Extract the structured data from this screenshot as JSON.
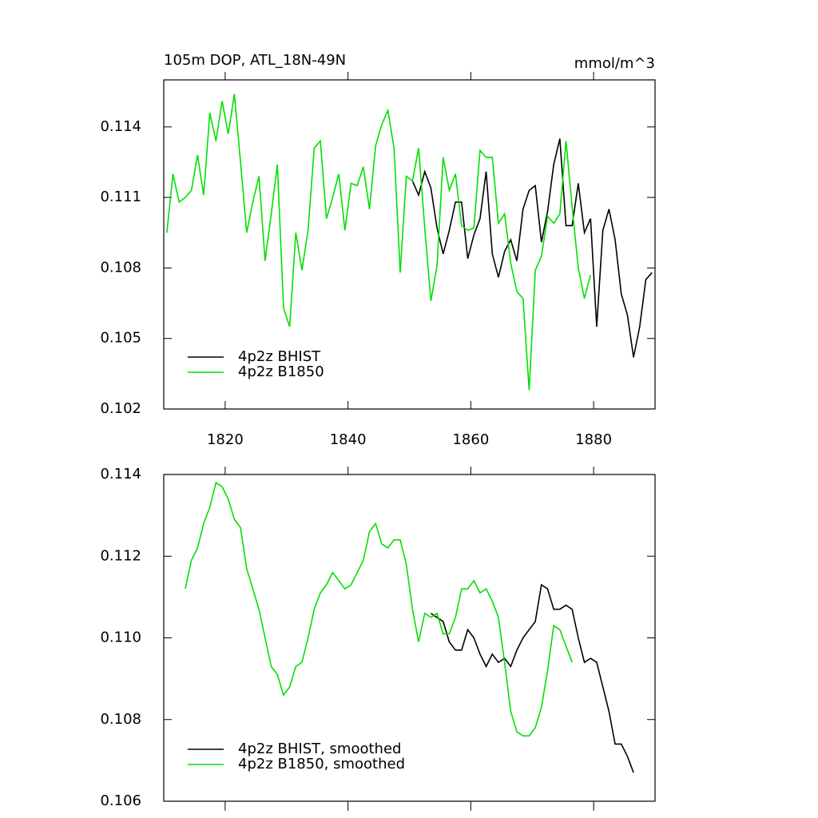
{
  "chart_data": [
    {
      "type": "line",
      "title": "105m DOP, ATL_18N-49N",
      "subtitle": "mmol/m^3",
      "xlim": [
        1810,
        1890
      ],
      "xticks": [
        1820,
        1840,
        1860,
        1880
      ],
      "xtick_labels": true,
      "ylim": [
        0.102,
        0.116
      ],
      "yticks": [
        0.102,
        0.105,
        0.108,
        0.111,
        0.114
      ],
      "legend": "lower left",
      "x": [
        1810.5,
        1811.5,
        1812.5,
        1813.5,
        1814.5,
        1815.5,
        1816.5,
        1817.5,
        1818.5,
        1819.5,
        1820.5,
        1821.5,
        1822.5,
        1823.5,
        1824.5,
        1825.5,
        1826.5,
        1827.5,
        1828.5,
        1829.5,
        1830.5,
        1831.5,
        1832.5,
        1833.5,
        1834.5,
        1835.5,
        1836.5,
        1837.5,
        1838.5,
        1839.5,
        1840.5,
        1841.5,
        1842.5,
        1843.5,
        1844.5,
        1845.5,
        1846.5,
        1847.5,
        1848.5,
        1849.5,
        1850.5,
        1851.5,
        1852.5,
        1853.5,
        1854.5,
        1855.5,
        1856.5,
        1857.5,
        1858.5,
        1859.5,
        1860.5,
        1861.5,
        1862.5,
        1863.5,
        1864.5,
        1865.5,
        1866.5,
        1867.5,
        1868.5,
        1869.5,
        1870.5,
        1871.5,
        1872.5,
        1873.5,
        1874.5,
        1875.5,
        1876.5,
        1877.5,
        1878.5,
        1879.5,
        1880.5,
        1881.5,
        1882.5,
        1883.5,
        1884.5,
        1885.5,
        1886.5,
        1887.5,
        1888.5,
        1889.5
      ],
      "series": [
        {
          "name": "4p2z BHIST",
          "color": "#000000",
          "values": [
            null,
            null,
            null,
            null,
            null,
            null,
            null,
            null,
            null,
            null,
            null,
            null,
            null,
            null,
            null,
            null,
            null,
            null,
            null,
            null,
            null,
            null,
            null,
            null,
            null,
            null,
            null,
            null,
            null,
            null,
            null,
            null,
            null,
            null,
            null,
            null,
            null,
            null,
            null,
            null,
            0.1117,
            0.1111,
            0.1121,
            0.1114,
            0.1097,
            0.1086,
            0.1096,
            0.1108,
            0.1108,
            0.1084,
            0.1094,
            0.1101,
            0.1121,
            0.1086,
            0.1076,
            0.1087,
            0.1092,
            0.1083,
            0.1105,
            0.1113,
            0.1115,
            0.1091,
            0.1104,
            0.1124,
            0.1135,
            0.1098,
            0.1098,
            0.1116,
            0.1095,
            0.1101,
            0.1055,
            0.1096,
            0.1105,
            0.1092,
            0.1069,
            0.106,
            0.1042,
            0.1055,
            0.1075,
            0.1078
          ]
        },
        {
          "name": "4p2z B1850",
          "color": "#00e000",
          "values": [
            0.1095,
            0.112,
            0.1108,
            0.111,
            0.1113,
            0.1128,
            0.1111,
            0.1146,
            0.1134,
            0.1151,
            0.1137,
            0.1154,
            0.1125,
            0.1095,
            0.1108,
            0.1119,
            0.1083,
            0.1103,
            0.1124,
            0.1063,
            0.1055,
            0.1095,
            0.1079,
            0.1096,
            0.1131,
            0.1134,
            0.1101,
            0.111,
            0.112,
            0.1096,
            0.1116,
            0.1115,
            0.1123,
            0.1105,
            0.1132,
            0.1141,
            0.1147,
            0.1131,
            0.1078,
            0.1119,
            0.1117,
            0.1131,
            0.1097,
            0.1066,
            0.1081,
            0.1127,
            0.1113,
            0.112,
            0.1098,
            0.1096,
            0.1097,
            0.113,
            0.1127,
            0.1127,
            0.1099,
            0.1103,
            0.1082,
            0.107,
            0.1067,
            0.1028,
            0.1079,
            0.1085,
            0.1102,
            0.1099,
            0.1103,
            0.1134,
            0.1106,
            0.108,
            0.1067,
            0.1077,
            null,
            null,
            null,
            null,
            null,
            null,
            null,
            null,
            null,
            null
          ]
        }
      ]
    },
    {
      "type": "line",
      "xlim": [
        1810,
        1890
      ],
      "xticks": [
        1820,
        1840,
        1860,
        1880
      ],
      "xtick_labels": false,
      "ylim": [
        0.106,
        0.114
      ],
      "yticks": [
        0.106,
        0.108,
        {
          "value": 0.11,
          "label": "0.110"
        },
        0.112,
        0.114
      ],
      "legend": "lower left",
      "x": [
        1813.5,
        1814.5,
        1815.5,
        1816.5,
        1817.5,
        1818.5,
        1819.5,
        1820.5,
        1821.5,
        1822.5,
        1823.5,
        1824.5,
        1825.5,
        1826.5,
        1827.5,
        1828.5,
        1829.5,
        1830.5,
        1831.5,
        1832.5,
        1833.5,
        1834.5,
        1835.5,
        1836.5,
        1837.5,
        1838.5,
        1839.5,
        1840.5,
        1841.5,
        1842.5,
        1843.5,
        1844.5,
        1845.5,
        1846.5,
        1847.5,
        1848.5,
        1849.5,
        1850.5,
        1851.5,
        1852.5,
        1853.5,
        1854.5,
        1855.5,
        1856.5,
        1857.5,
        1858.5,
        1859.5,
        1860.5,
        1861.5,
        1862.5,
        1863.5,
        1864.5,
        1865.5,
        1866.5,
        1867.5,
        1868.5,
        1869.5,
        1870.5,
        1871.5,
        1872.5,
        1873.5,
        1874.5,
        1875.5,
        1876.5,
        1877.5,
        1878.5,
        1879.5,
        1880.5,
        1881.5,
        1882.5,
        1883.5,
        1884.5,
        1885.5,
        1886.5
      ],
      "series": [
        {
          "name": "4p2z BHIST, smoothed",
          "color": "#000000",
          "values": [
            null,
            null,
            null,
            null,
            null,
            null,
            null,
            null,
            null,
            null,
            null,
            null,
            null,
            null,
            null,
            null,
            null,
            null,
            null,
            null,
            null,
            null,
            null,
            null,
            null,
            null,
            null,
            null,
            null,
            null,
            null,
            null,
            null,
            null,
            null,
            null,
            null,
            null,
            null,
            null,
            0.1106,
            0.1105,
            0.1104,
            0.1099,
            0.1097,
            0.1097,
            0.1102,
            0.11,
            0.1096,
            0.1093,
            0.1096,
            0.1094,
            0.1095,
            0.1093,
            0.1097,
            0.11,
            0.1102,
            0.1104,
            0.1113,
            0.1112,
            0.1107,
            0.1107,
            0.1108,
            0.1107,
            0.11,
            0.1094,
            0.1095,
            0.1094,
            0.1088,
            0.1082,
            0.1074,
            0.1074,
            0.1071,
            0.1067
          ]
        },
        {
          "name": "4p2z B1850, smoothed",
          "color": "#00e000",
          "values": [
            0.1112,
            0.1119,
            0.1122,
            0.1128,
            0.1132,
            0.1138,
            0.1137,
            0.1134,
            0.1129,
            0.1127,
            0.1117,
            0.1112,
            0.1107,
            0.11,
            0.1093,
            0.1091,
            0.1086,
            0.1088,
            0.1093,
            0.1094,
            0.11,
            0.1107,
            0.1111,
            0.1113,
            0.1116,
            0.1114,
            0.1112,
            0.1113,
            0.1116,
            0.1119,
            0.1126,
            0.1128,
            0.1123,
            0.1122,
            0.1124,
            0.1124,
            0.1118,
            0.1107,
            0.1099,
            0.1106,
            0.1105,
            0.1106,
            0.1101,
            0.1101,
            0.1105,
            0.1112,
            0.1112,
            0.1114,
            0.1111,
            0.1112,
            0.1109,
            0.1105,
            0.1094,
            0.1082,
            0.1077,
            0.1076,
            0.1076,
            0.1078,
            0.1083,
            0.1092,
            0.1103,
            0.1102,
            0.1098,
            0.1094,
            null,
            null,
            null,
            null,
            null,
            null,
            null,
            null,
            null,
            null
          ]
        }
      ]
    }
  ]
}
